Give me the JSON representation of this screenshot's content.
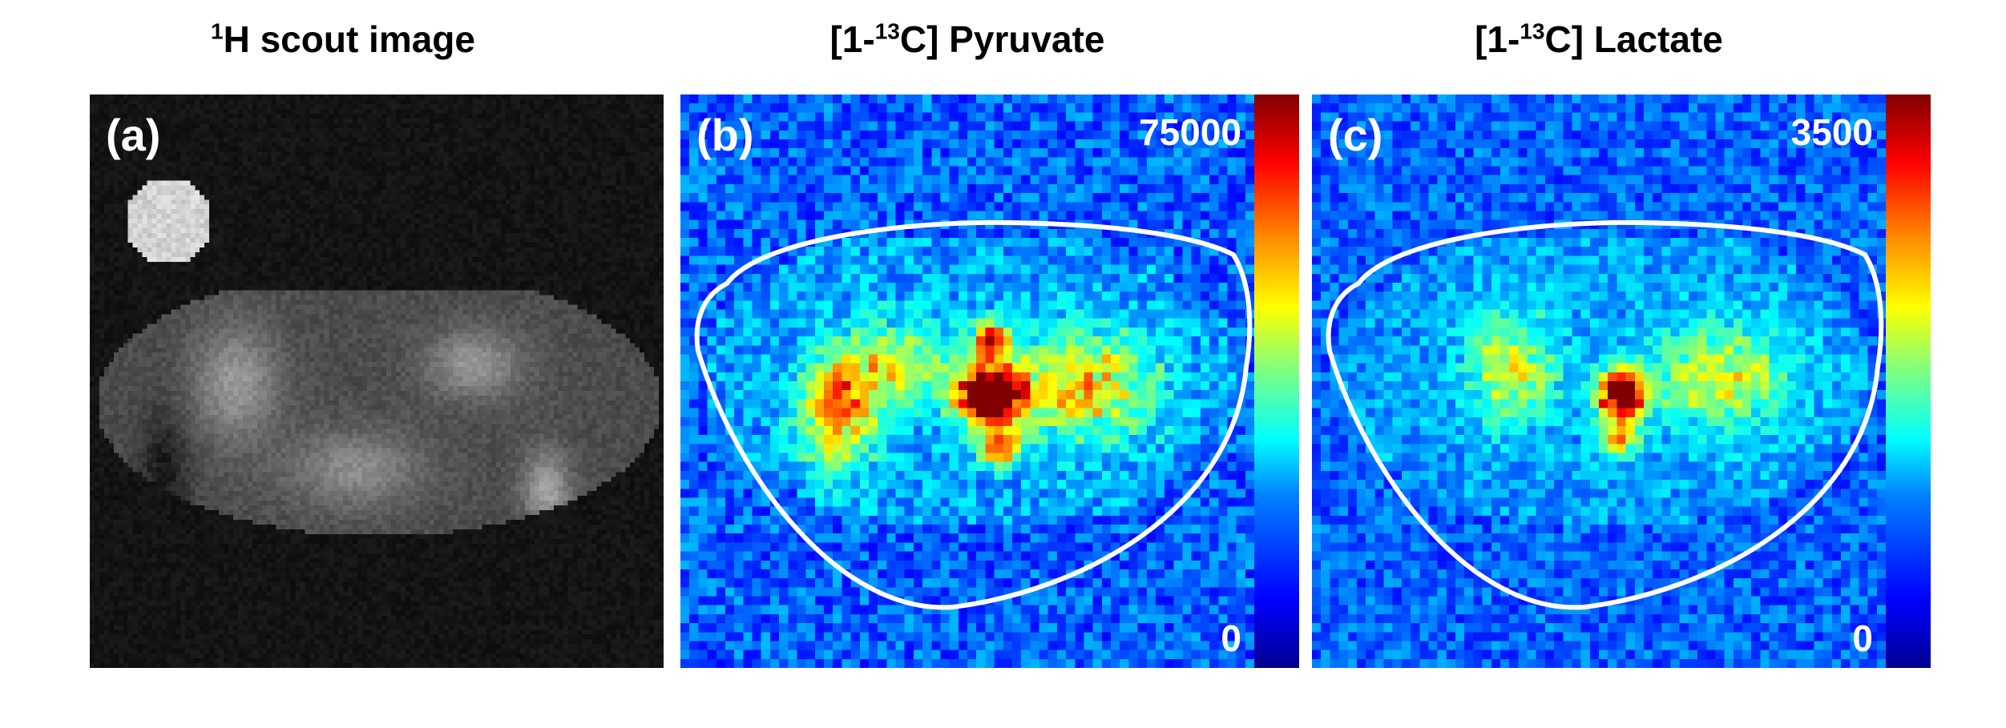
{
  "panels": [
    {
      "id": "a",
      "label": "(a)",
      "title_pre": "",
      "title_sup": "1",
      "title_post": "H scout image",
      "colormap": "gray"
    },
    {
      "id": "b",
      "label": "(b)",
      "title_pre": "[1-",
      "title_sup": "13",
      "title_post": "C] Pyruvate",
      "colormap": "jet",
      "scale_max": "75000",
      "scale_min": "0"
    },
    {
      "id": "c",
      "label": "(c)",
      "title_pre": "[1-",
      "title_sup": "13",
      "title_post": "C] Lactate",
      "colormap": "jet",
      "scale_max": "3500",
      "scale_min": "0"
    }
  ],
  "colors": {
    "background": "#ffffff",
    "contour": "#ffffff",
    "text": "#000000"
  }
}
